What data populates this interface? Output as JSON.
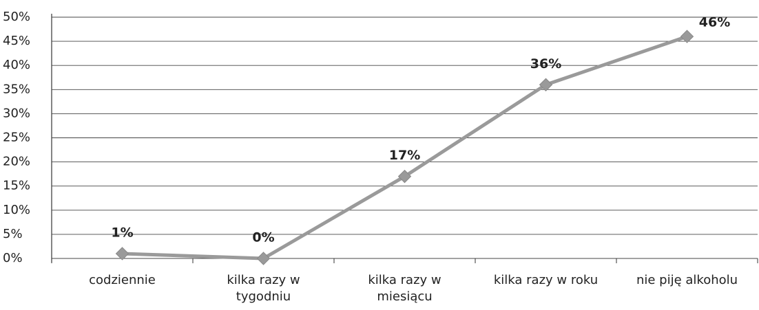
{
  "chart_data": {
    "type": "line",
    "categories": [
      "codziennie",
      "kilka razy w tygodniu",
      "kilka razy w miesiącu",
      "kilka razy w roku",
      "nie piję alkoholu"
    ],
    "values": [
      1,
      0,
      17,
      36,
      46
    ],
    "value_labels": [
      "1%",
      "0%",
      "17%",
      "36%",
      "46%"
    ],
    "color": "#9a9a9a",
    "ylim": [
      0,
      50
    ],
    "yticks": [
      {
        "value": 0,
        "label": "0%"
      },
      {
        "value": 5,
        "label": "5%"
      },
      {
        "value": 10,
        "label": "10%"
      },
      {
        "value": 15,
        "label": "15%"
      },
      {
        "value": 20,
        "label": "20%"
      },
      {
        "value": 25,
        "label": "25%"
      },
      {
        "value": 30,
        "label": "30%"
      },
      {
        "value": 35,
        "label": "35%"
      },
      {
        "value": 40,
        "label": "40%"
      },
      {
        "value": 45,
        "label": "45%"
      },
      {
        "value": 50,
        "label": "50%"
      }
    ],
    "grid": true
  }
}
